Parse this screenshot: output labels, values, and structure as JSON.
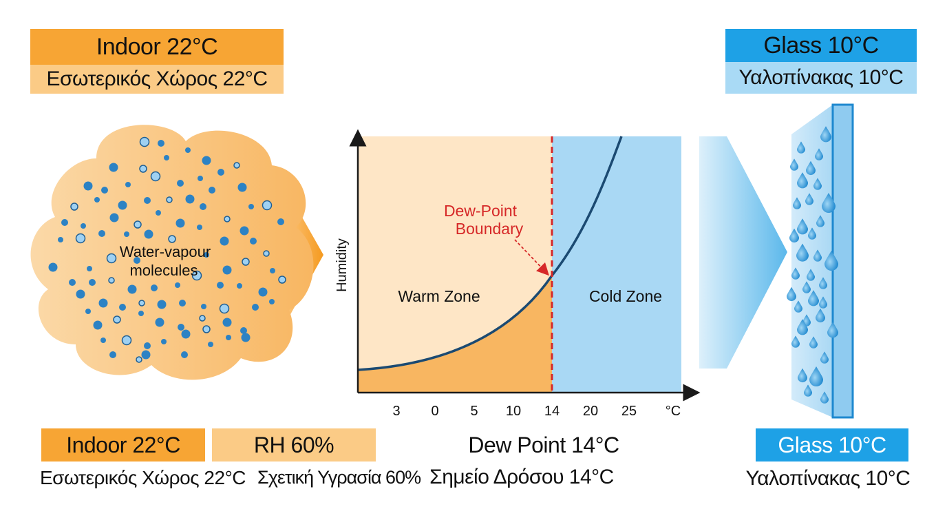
{
  "header": {
    "indoor_en": "Indoor 22°C",
    "indoor_gr": "Εσωτερικός Χώρος 22°C",
    "glass_en": "Glass 10°C",
    "glass_gr": "Υαλοπίνακας 10°C"
  },
  "cloud": {
    "label_line1": "Water-vapour",
    "label_line2": "molecules"
  },
  "chart_data": {
    "type": "line",
    "ylabel": "Humidity",
    "x_ticks": [
      "3",
      "0",
      "5",
      "10",
      "14",
      "20",
      "25",
      "°C"
    ],
    "dew_point_tick": "14",
    "boundary_label_line1": "Dew-Point",
    "boundary_label_line2": "Boundary",
    "warm_zone_label": "Warm Zone",
    "cold_zone_label": "Cold Zone"
  },
  "footer": {
    "indoor_en": "Indoor 22°C",
    "indoor_gr": "Εσωτερικός Χώρος 22°C",
    "rh_en": "RH 60%",
    "rh_gr": "Σχετική Υγρασία 60%",
    "dew_en": "Dew Point 14°C",
    "dew_gr": "Σημείο Δρόσου 14°C",
    "glass_en": "Glass 10°C",
    "glass_gr": "Υαλοπίνακας 10°C"
  },
  "colors": {
    "orange": "#F7A534",
    "light_orange": "#FBCB86",
    "blue": "#1EA1E6",
    "light_blue": "#A9DAF5",
    "dew_red": "#D62828",
    "curve": "#1B4A72"
  }
}
